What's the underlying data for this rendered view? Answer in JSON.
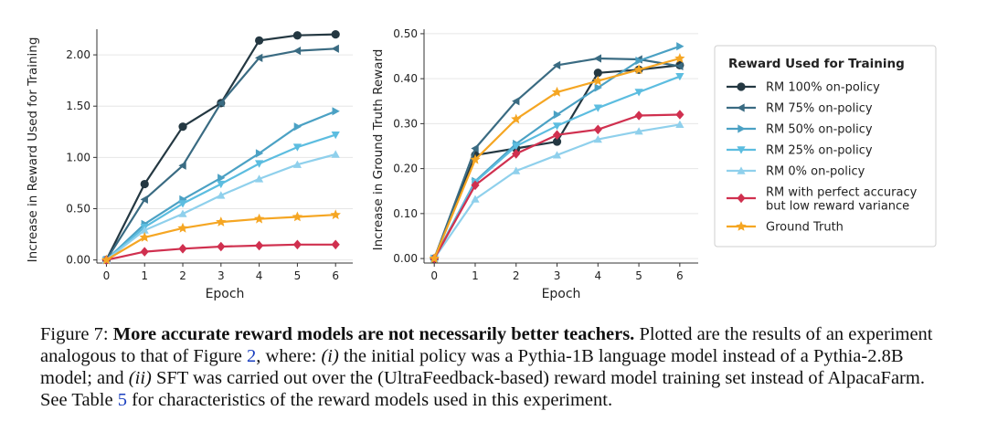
{
  "chart_data": [
    {
      "type": "line",
      "xlabel": "Epoch",
      "ylabel": "Increase in Reward Used for Training",
      "x": [
        0,
        1,
        2,
        3,
        4,
        5,
        6
      ],
      "ylim": [
        -0.03,
        2.25
      ],
      "yticks": [
        0.0,
        0.5,
        1.0,
        1.5,
        2.0
      ],
      "ytick_labels": [
        "0.00",
        "0.50",
        "1.00",
        "1.50",
        "2.00"
      ],
      "series": [
        {
          "name": "RM 100% on-policy",
          "values": [
            0.0,
            0.74,
            1.3,
            1.53,
            2.14,
            2.19,
            2.2
          ]
        },
        {
          "name": "RM 75% on-policy",
          "values": [
            0.0,
            0.59,
            0.92,
            1.53,
            1.97,
            2.04,
            2.06
          ]
        },
        {
          "name": "RM 50% on-policy",
          "values": [
            0.0,
            0.35,
            0.59,
            0.8,
            1.04,
            1.3,
            1.45
          ]
        },
        {
          "name": "RM 25% on-policy",
          "values": [
            0.0,
            0.32,
            0.55,
            0.74,
            0.94,
            1.1,
            1.22
          ]
        },
        {
          "name": "RM 0% on-policy",
          "values": [
            0.0,
            0.29,
            0.45,
            0.63,
            0.79,
            0.93,
            1.03
          ]
        },
        {
          "name": "RM with perfect accuracy but low reward variance",
          "values": [
            0.0,
            0.08,
            0.11,
            0.13,
            0.14,
            0.15,
            0.15
          ]
        },
        {
          "name": "Ground Truth",
          "values": [
            0.0,
            0.22,
            0.31,
            0.37,
            0.4,
            0.42,
            0.44
          ]
        }
      ]
    },
    {
      "type": "line",
      "xlabel": "Epoch",
      "ylabel": "Increase in Ground Truth Reward",
      "x": [
        0,
        1,
        2,
        3,
        4,
        5,
        6
      ],
      "ylim": [
        -0.01,
        0.51
      ],
      "yticks": [
        0.0,
        0.1,
        0.2,
        0.3,
        0.4,
        0.5
      ],
      "ytick_labels": [
        "0.00",
        "0.10",
        "0.20",
        "0.30",
        "0.40",
        "0.50"
      ],
      "series": [
        {
          "name": "RM 100% on-policy",
          "values": [
            0.0,
            0.23,
            0.245,
            0.26,
            0.413,
            0.42,
            0.43
          ]
        },
        {
          "name": "RM 75% on-policy",
          "values": [
            0.0,
            0.245,
            0.35,
            0.43,
            0.445,
            0.443,
            0.428
          ]
        },
        {
          "name": "RM 50% on-policy",
          "values": [
            0.0,
            0.172,
            0.255,
            0.32,
            0.38,
            0.44,
            0.472
          ]
        },
        {
          "name": "RM 25% on-policy",
          "values": [
            0.0,
            0.17,
            0.25,
            0.295,
            0.335,
            0.37,
            0.405
          ]
        },
        {
          "name": "RM 0% on-policy",
          "values": [
            0.0,
            0.132,
            0.195,
            0.23,
            0.265,
            0.283,
            0.298
          ]
        },
        {
          "name": "RM with perfect accuracy but low reward variance",
          "values": [
            0.0,
            0.163,
            0.233,
            0.275,
            0.287,
            0.318,
            0.32
          ]
        },
        {
          "name": "Ground Truth",
          "values": [
            0.0,
            0.22,
            0.31,
            0.37,
            0.395,
            0.42,
            0.445
          ]
        }
      ]
    }
  ],
  "series_styles": [
    {
      "color": "#243842",
      "marker": "circle"
    },
    {
      "color": "#3a6b82",
      "marker": "triangle-left"
    },
    {
      "color": "#4ba1c4",
      "marker": "triangle-right"
    },
    {
      "color": "#5cbde0",
      "marker": "triangle-down"
    },
    {
      "color": "#8fd0ec",
      "marker": "triangle-up"
    },
    {
      "color": "#d0304f",
      "marker": "diamond"
    },
    {
      "color": "#f5a623",
      "marker": "star"
    }
  ],
  "legend": {
    "title": "Reward Used for Training",
    "entries": [
      [
        "RM 100% on-policy"
      ],
      [
        "RM 75% on-policy"
      ],
      [
        "RM 50% on-policy"
      ],
      [
        "RM 25% on-policy"
      ],
      [
        "RM 0% on-policy"
      ],
      [
        "RM with perfect accuracy",
        "but low reward variance"
      ],
      [
        "Ground Truth"
      ]
    ]
  },
  "caption": {
    "figure_label": "Figure 7:",
    "bold_title": "More accurate reward models are not necessarily better teachers.",
    "text_1": " Plotted are the results of an experiment analogous to that of Figure ",
    "figure_ref": "2",
    "text_2": ", where: ",
    "item_1": "(i)",
    "text_3": " the initial policy was a Pythia-1B language model instead of a Pythia-2.8B model; and ",
    "item_2": "(ii)",
    "text_4": " SFT was carried out over the (UltraFeedback-based) reward model training set instead of AlpacaFarm. See Table ",
    "table_ref": "5",
    "text_5": " for characteristics of the reward models used in this experiment."
  }
}
